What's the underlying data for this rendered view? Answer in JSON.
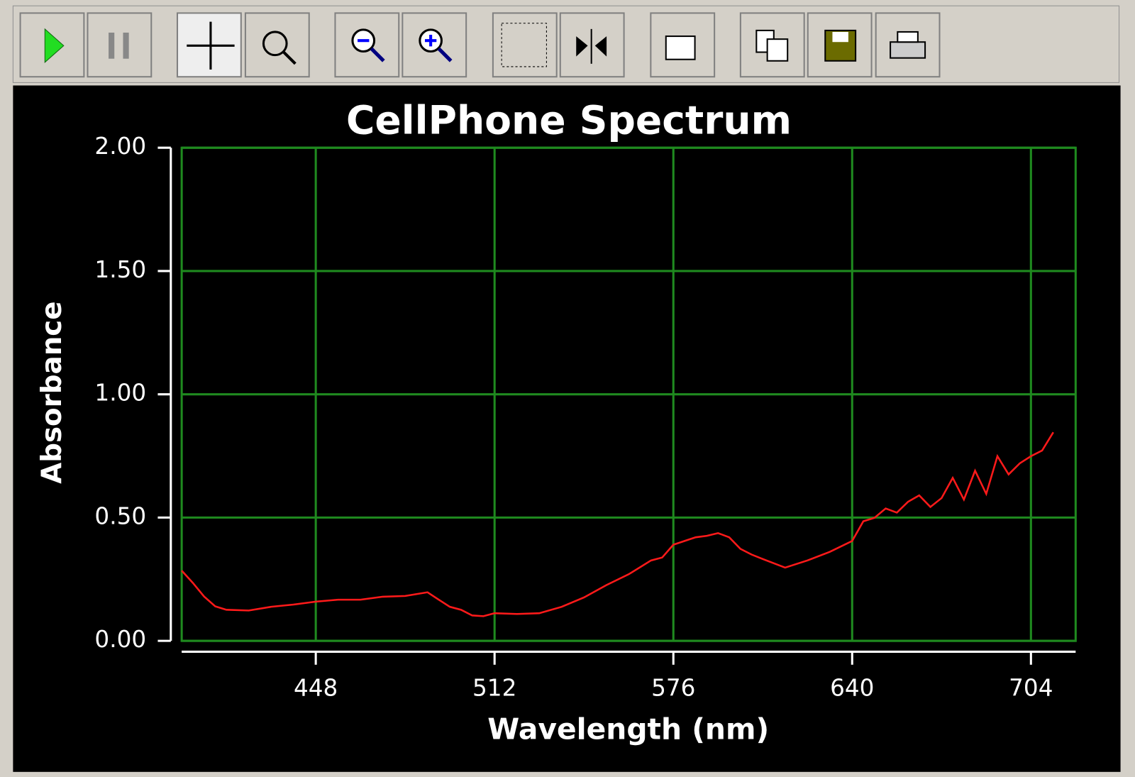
{
  "chart_data": {
    "type": "line",
    "title": "CellPhone Spectrum",
    "x_label": "Wavelength (nm)",
    "y_label": "Absorbance",
    "x": [
      400,
      404,
      408,
      412,
      416,
      424,
      432,
      440,
      448,
      456,
      464,
      472,
      480,
      488,
      492,
      496,
      500,
      504,
      508,
      512,
      520,
      528,
      536,
      544,
      552,
      560,
      568,
      572,
      576,
      580,
      584,
      588,
      592,
      596,
      600,
      604,
      608,
      616,
      624,
      632,
      640,
      644,
      648,
      652,
      656,
      660,
      664,
      668,
      672,
      676,
      680,
      684,
      688,
      692,
      696,
      700,
      704,
      708,
      712
    ],
    "series": [
      {
        "name": "Absorbance",
        "color": "#ff1a1a",
        "values": [
          0.285,
          0.235,
          0.18,
          0.14,
          0.126,
          0.123,
          0.138,
          0.147,
          0.159,
          0.167,
          0.167,
          0.179,
          0.182,
          0.197,
          0.167,
          0.138,
          0.126,
          0.103,
          0.1,
          0.112,
          0.109,
          0.112,
          0.138,
          0.176,
          0.226,
          0.27,
          0.326,
          0.338,
          0.39,
          0.405,
          0.42,
          0.426,
          0.437,
          0.42,
          0.373,
          0.35,
          0.332,
          0.297,
          0.326,
          0.361,
          0.405,
          0.485,
          0.499,
          0.537,
          0.52,
          0.564,
          0.59,
          0.543,
          0.579,
          0.661,
          0.573,
          0.69,
          0.596,
          0.749,
          0.675,
          0.72,
          0.749,
          0.772,
          0.846
        ]
      }
    ],
    "xlim": [
      400,
      720
    ],
    "xticks": [
      448,
      512,
      576,
      640,
      704
    ],
    "ylim": [
      0,
      2
    ],
    "yticks": [
      {
        "value": 0,
        "label": "0.00"
      },
      {
        "value": 0.5,
        "label": "0.50"
      },
      {
        "value": 1,
        "label": "1.00"
      },
      {
        "value": 1.5,
        "label": "1.50"
      },
      {
        "value": 2,
        "label": "2.00"
      }
    ],
    "grid": true,
    "grid_color": "#1f8a1f"
  }
}
